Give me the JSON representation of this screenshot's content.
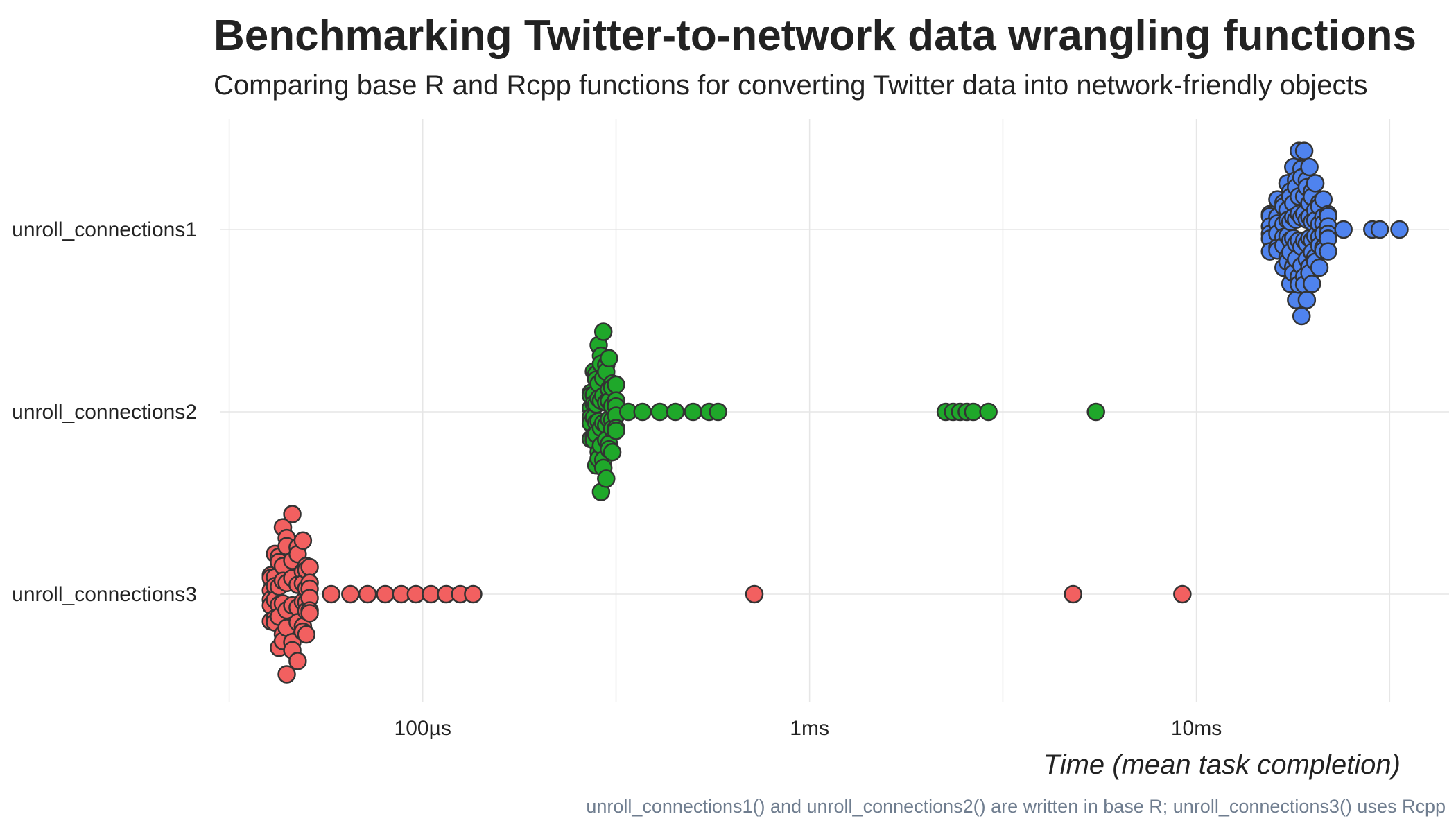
{
  "chart_data": {
    "type": "scatter",
    "subtype": "beeswarm",
    "title": "Benchmarking Twitter-to-network data wrangling functions",
    "subtitle": "Comparing base R and Rcpp functions for converting Twitter data into network-friendly objects",
    "xlabel": "Time (mean task completion)",
    "ylabel": "",
    "caption": "unroll_connections1() and unroll_connections2() are written in base R; unroll_connections3() uses Rcpp",
    "x_scale": "log10",
    "x_unit": "seconds",
    "xlim": [
      3e-05,
      0.045
    ],
    "x_ticks": [
      {
        "value": 0.0001,
        "label": "100µs"
      },
      {
        "value": 0.001,
        "label": "1ms"
      },
      {
        "value": 0.01,
        "label": "10ms"
      }
    ],
    "categories": [
      "unroll_connections1",
      "unroll_connections2",
      "unroll_connections3"
    ],
    "grid": true,
    "legend": "none",
    "series": [
      {
        "category": "unroll_connections1",
        "color": "#4f83ee",
        "core": [
          0.0155,
          0.0162,
          0.0168,
          0.0172,
          0.0175,
          0.0178,
          0.0181,
          0.0184,
          0.0187,
          0.019,
          0.0193,
          0.0196,
          0.0199,
          0.0203,
          0.0208,
          0.0213,
          0.0219
        ],
        "outliers": [
          0.024,
          0.0285,
          0.0298,
          0.0335
        ]
      },
      {
        "category": "unroll_connections2",
        "color": "#1fa82a",
        "core": [
          0.000272,
          0.000277,
          0.000281,
          0.000285,
          0.000289,
          0.000293,
          0.000298,
          0.000303,
          0.000309,
          0.000316
        ],
        "tail": [
          0.00034,
          0.00037,
          0.00041,
          0.00045,
          0.0005,
          0.00055,
          0.00058
        ],
        "outliers": [
          0.00225,
          0.00235,
          0.00245,
          0.00255,
          0.00265,
          0.0029,
          0.0055
        ]
      },
      {
        "category": "unroll_connections3",
        "color": "#f26060",
        "core": [
          4.05e-05,
          4.15e-05,
          4.25e-05,
          4.35e-05,
          4.45e-05,
          4.6e-05,
          4.75e-05,
          4.9e-05,
          5e-05,
          5.1e-05
        ],
        "tail": [
          5.8e-05,
          6.5e-05,
          7.2e-05,
          8e-05,
          8.8e-05,
          9.6e-05,
          0.000105,
          0.000115,
          0.000125,
          0.000135
        ],
        "outliers": [
          0.00072,
          0.0048,
          0.0092
        ]
      }
    ]
  }
}
